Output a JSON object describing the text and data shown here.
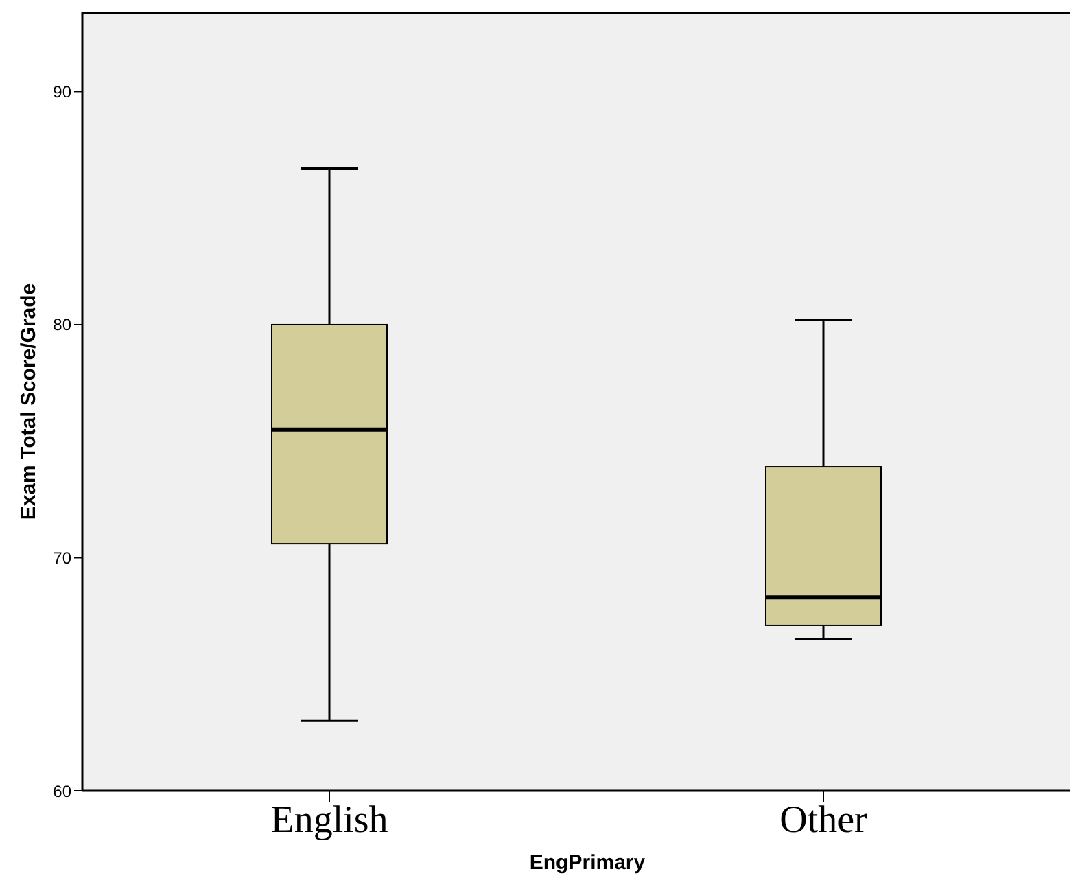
{
  "chart_data": {
    "type": "box",
    "xlabel": "EngPrimary",
    "ylabel": "Exam Total Score/Grade",
    "categories": [
      "English",
      "Other"
    ],
    "series": [
      {
        "color": "#d3ce99",
        "boxes": [
          {
            "low": 63.0,
            "q1": 70.6,
            "median": 75.5,
            "q3": 80.0,
            "high": 86.7
          },
          {
            "low": 66.5,
            "q1": 67.1,
            "median": 68.3,
            "q3": 73.9,
            "high": 80.2
          }
        ]
      }
    ],
    "ylim": [
      60,
      93.4
    ],
    "yticks": [
      60,
      70,
      80,
      90
    ]
  }
}
